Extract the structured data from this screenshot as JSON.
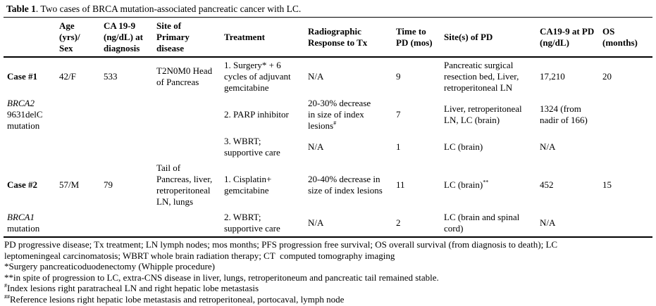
{
  "title": {
    "label": "Table 1",
    "text": ". Two cases of BRCA mutation-associated pancreatic cancer with LC."
  },
  "table": {
    "headers": [
      "",
      "Age\n(yrs)/\nSex",
      "CA 19-9\n(ng/dL) at\ndiagnosis",
      "Site of\nPrimary\ndisease",
      "Treatment",
      "Radiographic\nResponse to Tx",
      "Time to\nPD (mos)",
      "Site(s) of PD",
      "CA19-9 at PD\n(ng/dL)",
      "OS\n(months)"
    ],
    "rows": [
      [
        [
          {
            "t": "Case #1",
            "s": "b"
          }
        ],
        "42/F",
        "533",
        "T2N0M0 Head\nof Pancreas",
        "1. Surgery* + 6\ncycles of adjuvant\ngemcitabine",
        "N/A",
        "9",
        "Pancreatic surgical\nresection bed, Liver,\nretroperitoneal LN",
        "17,210",
        "20"
      ],
      [
        [
          {
            "t": "BRCA2\n",
            "s": "i"
          },
          {
            "t": "9631delC\nmutation"
          }
        ],
        "",
        "",
        "",
        "2. PARP inhibitor",
        [
          {
            "t": "20-30% decrease\nin size of index\nlesions"
          },
          {
            "t": "#",
            "s": "sup"
          }
        ],
        "7",
        "Liver, retroperitoneal\nLN, LC (brain)",
        "1324 (from\nnadir of 166)",
        ""
      ],
      [
        "",
        "",
        "",
        "",
        "3. WBRT;\nsupportive care",
        "N/A",
        "1",
        "LC (brain)",
        "N/A",
        ""
      ],
      [
        [
          {
            "t": "Case #2",
            "s": "b"
          }
        ],
        "57/M",
        "79",
        "Tail of\nPancreas, liver,\nretroperitoneal\nLN, lungs",
        "1. Cisplatin+\ngemcitabine",
        "20-40% decrease in\nsize of index lesions",
        "11",
        [
          {
            "t": "LC (brain)"
          },
          {
            "t": "**",
            "s": "sup"
          }
        ],
        "452",
        "15"
      ],
      [
        [
          {
            "t": "BRCA1\n",
            "s": "i"
          },
          {
            "t": "mutation"
          }
        ],
        "",
        "",
        "",
        "2. WBRT;\nsupportive care",
        "N/A",
        "2",
        "LC (brain and spinal\ncord)",
        "N/A",
        ""
      ]
    ]
  },
  "footnotes": [
    "PD progressive disease; Tx treatment; LN lymph nodes; mos months; PFS progression free survival; OS overall survival (from diagnosis to death); LC\nleptomeningeal carcinomatosis; WBRT whole brain radiation therapy; CT  computed tomography imaging",
    "*Surgery pancreaticoduodenectomy (Whipple procedure)",
    "**in spite of progression to LC, extra-CNS disease in liver, lungs, retroperitoneum and pancreatic tail remained stable.",
    [
      {
        "t": "#",
        "s": "sup"
      },
      {
        "t": "Index lesions right paratracheal LN and right hepatic lobe metastasis"
      }
    ],
    [
      {
        "t": "##",
        "s": "sup"
      },
      {
        "t": "Reference lesions right hepatic lobe metastasis and retroperitoneal, portocaval, lymph node"
      }
    ]
  ],
  "colors": {
    "text": "#000000",
    "rule": "#000000",
    "background": "#ffffff"
  }
}
